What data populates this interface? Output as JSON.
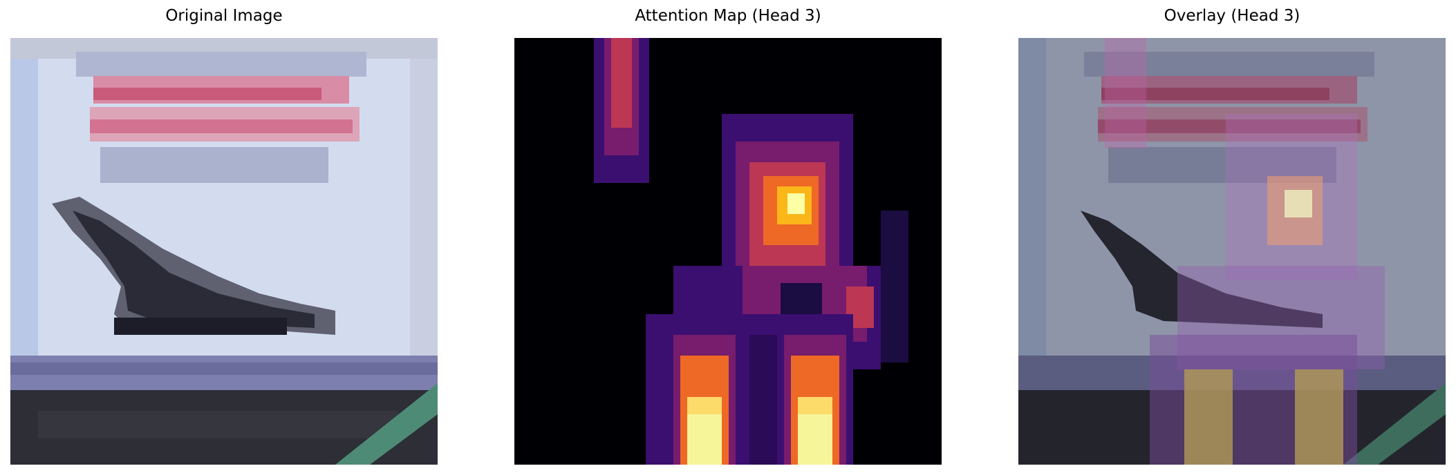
{
  "panels": [
    {
      "title": "Original Image"
    },
    {
      "title": "Attention Map (Head 3)"
    },
    {
      "title": "Overlay (Head 3)"
    }
  ],
  "colors": {
    "sky": "#d7def0",
    "sign_top": "#b9c1d8",
    "sign_text_pink": "#d98aa0",
    "sign_text_red": "#d2506e",
    "plane_dark": "#2a2a35",
    "plane_mid": "#5d5d6e",
    "runway_blue": "#7e7fb1",
    "ground_dark": "#2c2d34",
    "ground_green": "#4f8f79",
    "attention_black": "#000004",
    "attention_purple": "#781c6d",
    "attention_red": "#bc3754",
    "attention_orange": "#ed6925",
    "attention_yellow": "#fcffa4"
  }
}
